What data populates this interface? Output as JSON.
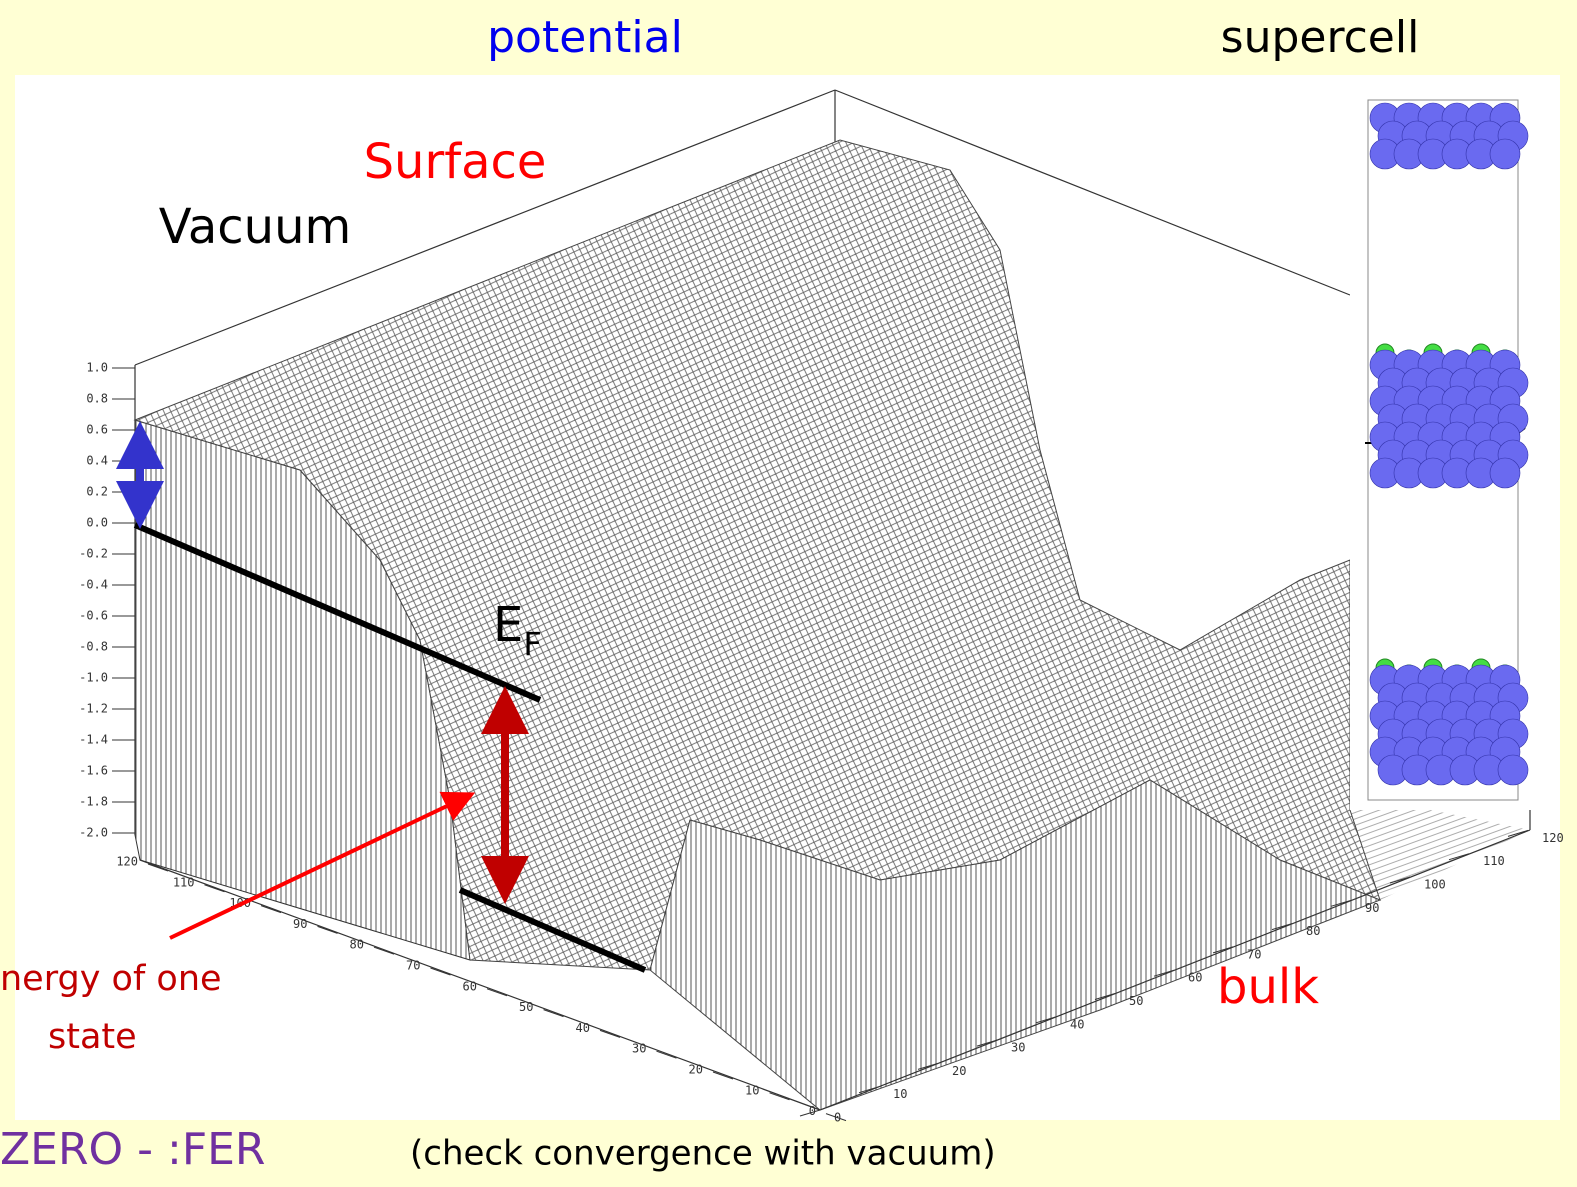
{
  "header": {
    "left": "potential",
    "right": "supercell"
  },
  "labels": {
    "surface": "Surface",
    "vacuum": "Vacuum",
    "fermi": "E",
    "fermi_sub": "F",
    "bulk": "bulk",
    "energy_line1": "nergy of one",
    "energy_line2": "state"
  },
  "z_ticks": [
    "1.0",
    "0.8",
    "0.6",
    "0.4",
    "0.2",
    "0.0",
    "-0.2",
    "-0.4",
    "-0.6",
    "-0.8",
    "-1.0",
    "-1.2",
    "-1.4",
    "-1.6",
    "-1.8",
    "-2.0"
  ],
  "x_ticks": [
    "120",
    "110",
    "100",
    "90",
    "80",
    "70",
    "60",
    "50",
    "40",
    "30",
    "20",
    "10",
    "0"
  ],
  "y_ticks": [
    "0",
    "10",
    "20",
    "30",
    "40",
    "50",
    "60",
    "70",
    "80",
    "90",
    "100",
    "110",
    "120"
  ],
  "footer": {
    "left": "ZERO - :FER",
    "right": "(check convergence with vacuum)"
  }
}
